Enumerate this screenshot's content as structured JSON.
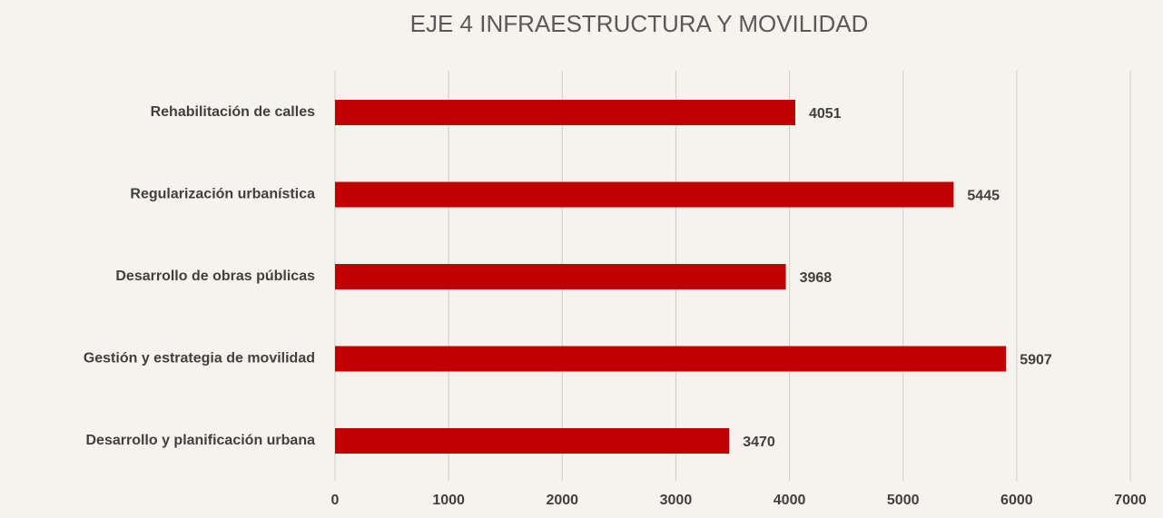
{
  "chart_data": {
    "type": "hbar",
    "title": "EJE 4 INFRAESTRUCTURA Y MOVILIDAD",
    "categories": [
      "Rehabilitación de calles",
      "Regularización urbanística",
      "Desarrollo de obras públicas",
      "Gestión y estrategia de movilidad",
      "Desarrollo y planificación urbana"
    ],
    "values": [
      4051,
      5445,
      3968,
      5907,
      3470
    ],
    "color": "#c00000",
    "xlim": [
      0,
      7000
    ],
    "xticks": [
      0,
      1000,
      2000,
      3000,
      4000,
      5000,
      6000,
      7000
    ],
    "grid": true
  }
}
